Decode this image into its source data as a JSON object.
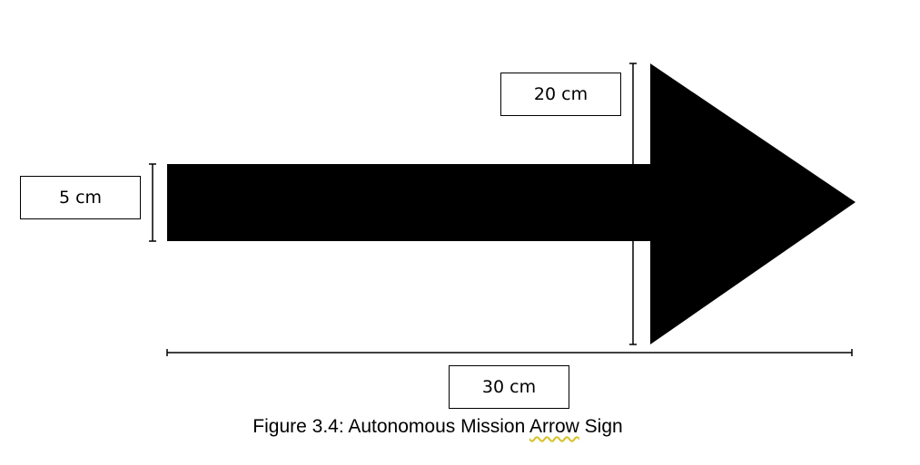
{
  "dimensions": {
    "height_label": "5 cm",
    "head_label": "20 cm",
    "length_label": "30 cm"
  },
  "caption": {
    "prefix": "Figure 3.4: Autonomous Mission ",
    "underlined": "Arrow",
    "suffix": " Sign"
  },
  "colors": {
    "arrow": "#000000",
    "spellcheck_underline": "#d8c32a"
  }
}
